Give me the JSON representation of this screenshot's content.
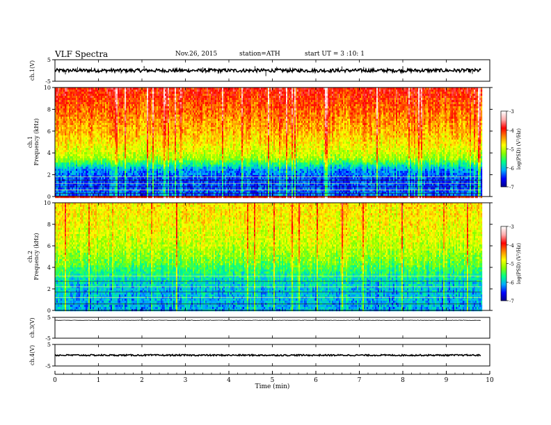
{
  "header": {
    "title": "VLF Spectra",
    "date": "Nov.26, 2015",
    "station": "station=ATH",
    "start": "start UT =  3 :10: 1"
  },
  "chart_data": [
    {
      "type": "line",
      "panel": "ch.1 waveform",
      "ylabel": "ch.1(V)",
      "ylim": [
        -5,
        5
      ],
      "yticks": [
        "5",
        "-5"
      ],
      "x_unit": "min",
      "xlim": [
        0,
        10
      ],
      "data_end": 9.8,
      "baseline": 0,
      "noise_amplitude": 0.8,
      "spikes": [
        {
          "x": 0.24,
          "y": -1.8
        },
        {
          "x": 0.52,
          "y": 1.6
        },
        {
          "x": 0.84,
          "y": 1.4
        },
        {
          "x": 1.52,
          "y": -1.4
        },
        {
          "x": 2.05,
          "y": 2.1
        },
        {
          "x": 3.4,
          "y": 1.5
        },
        {
          "x": 3.75,
          "y": -1.5
        },
        {
          "x": 4.6,
          "y": 2.0
        },
        {
          "x": 4.85,
          "y": -2.6
        },
        {
          "x": 5.1,
          "y": 1.7
        },
        {
          "x": 6.6,
          "y": 1.9
        },
        {
          "x": 7.1,
          "y": 1.6
        },
        {
          "x": 8.0,
          "y": 2.0
        },
        {
          "x": 9.6,
          "y": -1.6
        }
      ]
    },
    {
      "type": "heatmap",
      "panel": "ch.1 spectrogram",
      "ylabel_top": "ch.1",
      "ylabel": "Frequency (kHz)",
      "ylim": [
        0,
        10
      ],
      "yticks": [
        "0",
        "2",
        "4",
        "6",
        "8",
        "10"
      ],
      "xlim": [
        0,
        10
      ],
      "data_end": 9.8,
      "colorbar": {
        "label": "log(PSD) (V²/Hz)",
        "range": [
          -7,
          -3
        ],
        "ticks": [
          "-3",
          "-4",
          "-5",
          "-6",
          "-7"
        ]
      },
      "level_profile": [
        {
          "f": 0,
          "v": -6.3
        },
        {
          "f": 1.5,
          "v": -6.4
        },
        {
          "f": 2.5,
          "v": -6.1
        },
        {
          "f": 3.0,
          "v": -5.6
        },
        {
          "f": 3.5,
          "v": -5.1
        },
        {
          "f": 4.5,
          "v": -4.8
        },
        {
          "f": 6.0,
          "v": -4.5
        },
        {
          "f": 8.0,
          "v": -4.2
        },
        {
          "f": 10.0,
          "v": -3.9
        }
      ],
      "harmonic_lines_khz": [
        0.3,
        0.6,
        0.9,
        1.2,
        1.5,
        1.8
      ]
    },
    {
      "type": "heatmap",
      "panel": "ch.2 spectrogram",
      "ylabel_top": "ch.2",
      "ylabel": "Frequency (kHz)",
      "ylim": [
        0,
        10
      ],
      "yticks": [
        "0",
        "2",
        "4",
        "6",
        "8",
        "10"
      ],
      "xlim": [
        0,
        10
      ],
      "data_end": 9.8,
      "colorbar": {
        "label": "log(PSD) (V²/Hz)",
        "range": [
          -7,
          -3
        ],
        "ticks": [
          "-3",
          "-4",
          "-5",
          "-6",
          "-7"
        ]
      },
      "level_profile": [
        {
          "f": 0,
          "v": -6.1
        },
        {
          "f": 2.0,
          "v": -6.0
        },
        {
          "f": 3.0,
          "v": -5.8
        },
        {
          "f": 4.5,
          "v": -5.3
        },
        {
          "f": 6.0,
          "v": -5.0
        },
        {
          "f": 8.0,
          "v": -4.8
        },
        {
          "f": 10.0,
          "v": -4.7
        }
      ],
      "harmonic_lines_khz": [
        0.6,
        1.2,
        1.7,
        2.2,
        2.7,
        3.2
      ]
    },
    {
      "type": "line",
      "panel": "ch.3 waveform",
      "ylabel": "ch.3(V)",
      "ylim": [
        -5,
        5
      ],
      "yticks": [
        "5",
        "-5"
      ],
      "xlim": [
        0,
        10
      ],
      "data_end": 9.8,
      "baseline": 3.6,
      "noise_amplitude": 0.1
    },
    {
      "type": "line",
      "panel": "ch.4 waveform",
      "ylabel": "ch.4(V)",
      "ylim": [
        -5,
        5
      ],
      "yticks": [
        "5",
        "-5"
      ],
      "xlim": [
        0,
        10
      ],
      "data_end": 9.8,
      "baseline": 0,
      "noise_amplitude": 0.35
    }
  ],
  "x_axis": {
    "label": "Time (min)",
    "ticks": [
      "0",
      "1",
      "2",
      "3",
      "4",
      "5",
      "6",
      "7",
      "8",
      "9",
      "10"
    ]
  },
  "colormap": [
    "#000088",
    "#0000ff",
    "#00aaff",
    "#00ff88",
    "#88ff00",
    "#ffff00",
    "#ff8800",
    "#ff0000",
    "#ffaaaa",
    "#ffffff"
  ]
}
